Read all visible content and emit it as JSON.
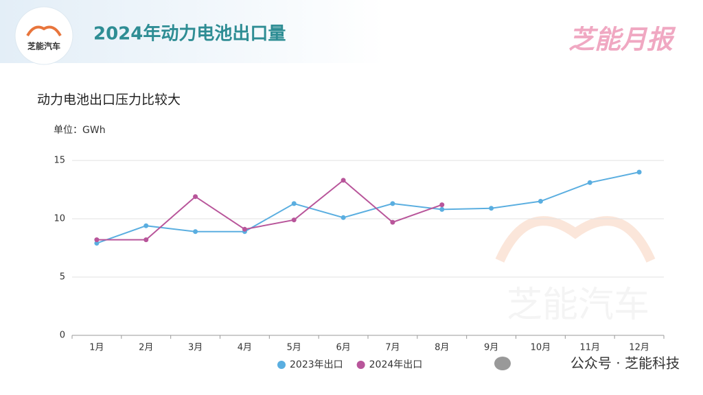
{
  "header": {
    "logo_text": "芝能汽车",
    "title": "2024年动力电池出口量",
    "brand": "芝能月报"
  },
  "chart_data": {
    "type": "line",
    "title": "动力电池出口压力比较大",
    "y_unit": "单位：GWh",
    "categories": [
      "1月",
      "2月",
      "3月",
      "4月",
      "5月",
      "6月",
      "7月",
      "8月",
      "9月",
      "10月",
      "11月",
      "12月"
    ],
    "series": [
      {
        "name": "2023年出口",
        "color": "#5aaee0",
        "values": [
          7.9,
          9.4,
          8.9,
          8.9,
          11.3,
          10.1,
          11.3,
          10.8,
          10.9,
          11.5,
          13.1,
          14.0
        ]
      },
      {
        "name": "2024年出口",
        "color": "#b8559a",
        "values": [
          8.2,
          8.2,
          11.9,
          9.1,
          9.9,
          13.3,
          9.7,
          11.2,
          null,
          null,
          null,
          null
        ]
      }
    ],
    "ylim": [
      0,
      15
    ],
    "yticks": [
      0,
      5,
      10,
      15
    ],
    "grid": true,
    "legend": "bottom",
    "watermark": "芝能汽车"
  },
  "footer": {
    "credit": "公众号 · 芝能科技"
  }
}
